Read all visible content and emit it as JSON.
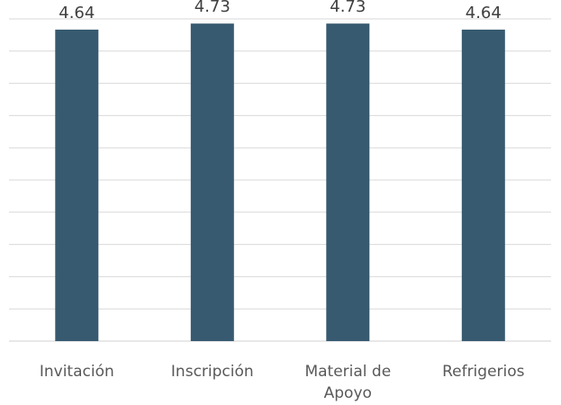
{
  "chart_data": {
    "type": "bar",
    "categories": [
      [
        "Invitación"
      ],
      [
        "Inscripción"
      ],
      [
        "Material de",
        "Apoyo"
      ],
      [
        "Refrigerios"
      ]
    ],
    "values": [
      4.64,
      4.73,
      4.73,
      4.64
    ],
    "data_labels": [
      "4.64",
      "4.73",
      "4.73",
      "4.64"
    ],
    "ylim": [
      0,
      4.8
    ],
    "grid": true,
    "bar_color": "#375a70",
    "grid_color": "#d9d9d9"
  }
}
